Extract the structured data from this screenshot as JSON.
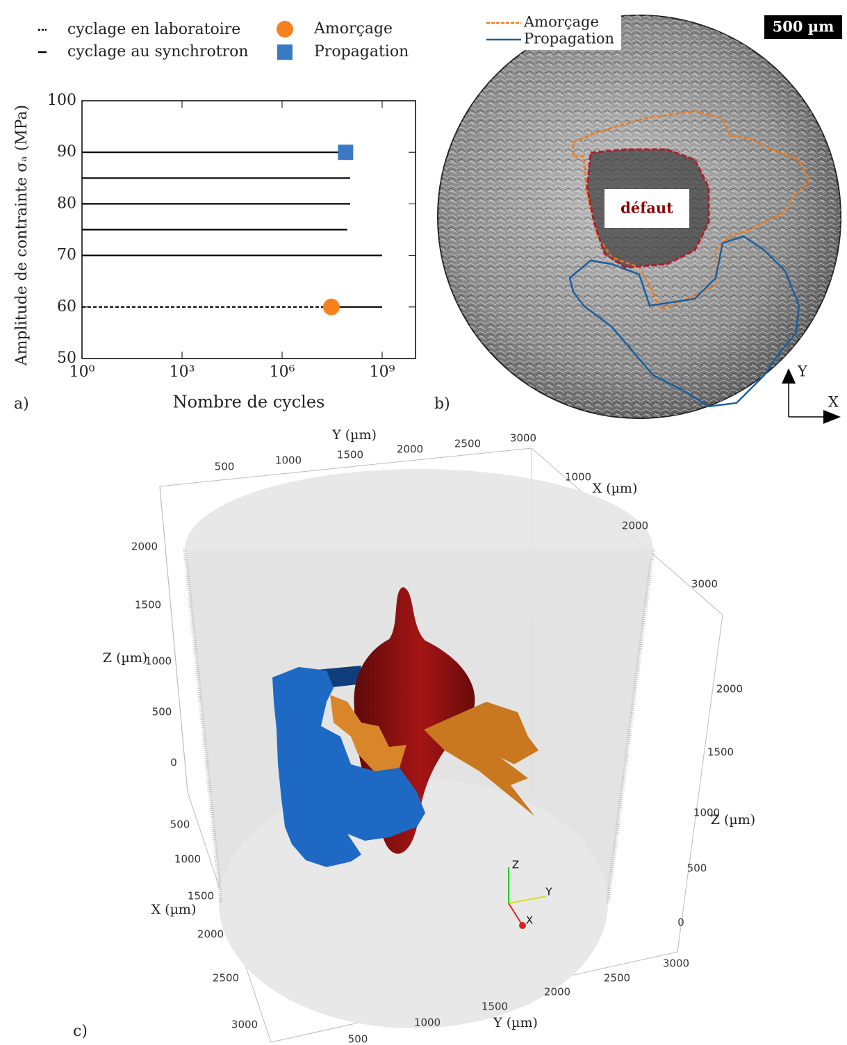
{
  "chart_data": {
    "type": "line",
    "panel_label": "a)",
    "y_label": "Amplitude de contrainte σₐ (MPa)",
    "x_label": "Nombre de cycles",
    "x_scale": "log",
    "xlim": [
      1,
      10000000000
    ],
    "xticks": [
      {
        "value": 1,
        "label": "10⁰"
      },
      {
        "value": 1000,
        "label": "10³"
      },
      {
        "value": 1000000,
        "label": "10⁶"
      },
      {
        "value": 1000000000,
        "label": "10⁹"
      }
    ],
    "ylim": [
      50,
      100
    ],
    "yticks": [
      50,
      60,
      70,
      80,
      90,
      100
    ],
    "legend": "top",
    "series": [
      {
        "name": "cyclage en laboratoire",
        "color": "#000000",
        "style": "dashed",
        "x": [
          1,
          30000000
        ],
        "values": [
          60,
          60
        ]
      },
      {
        "name": "cyclage au synchrotron",
        "color": "#000000",
        "style": "solid",
        "x": [
          1,
          120000000,
          null,
          1,
          110000000,
          null,
          1,
          110000000,
          null,
          1,
          90000000,
          null,
          1,
          1000000000,
          null,
          30000000,
          1000000000
        ],
        "values": [
          90,
          90,
          null,
          85,
          85,
          null,
          80,
          80,
          null,
          75,
          75,
          null,
          70,
          70,
          null,
          60,
          60
        ]
      },
      {
        "name": "Amorçage",
        "color": "#f5821f",
        "marker": "circle",
        "x": [
          30000000
        ],
        "values": [
          60
        ]
      },
      {
        "name": "Propagation",
        "color": "#3a7ac4",
        "marker": "square",
        "x": [
          80000000
        ],
        "values": [
          90
        ]
      }
    ]
  },
  "panel_b": {
    "label": "b)",
    "scale_bar": "500 µm",
    "defect_label": "défaut",
    "axis_y": "Y",
    "axis_x": "X",
    "legend": [
      {
        "name": "Amorçage",
        "color": "#f07a1a",
        "style": "dashed"
      },
      {
        "name": "Propagation",
        "color": "#1d5e9e",
        "style": "solid"
      }
    ]
  },
  "panel_c": {
    "label": "c)",
    "top_y_axis": {
      "title": "Y (µm)",
      "ticks": [
        500,
        1000,
        1500,
        2000,
        2500,
        3000
      ]
    },
    "top_x_axis": {
      "title": "X (µm)",
      "ticks": [
        1000,
        2000,
        3000
      ]
    },
    "left_z_axis": {
      "title": "Z (µm)",
      "ticks": [
        2000,
        1500,
        1000,
        500,
        0
      ]
    },
    "right_z_axis": {
      "title": "Z (µm)",
      "ticks": [
        2000,
        1500,
        1000,
        500,
        0
      ]
    },
    "left_x_axis": {
      "title": "X (µm)",
      "ticks": [
        500,
        1000,
        1500,
        2000,
        2500,
        3000
      ]
    },
    "bottom_y_axis": {
      "title": "Y (µm)",
      "ticks": [
        500,
        1000,
        1500,
        2000,
        2500,
        3000
      ]
    },
    "triad": [
      "Z",
      "Y",
      "X"
    ]
  }
}
